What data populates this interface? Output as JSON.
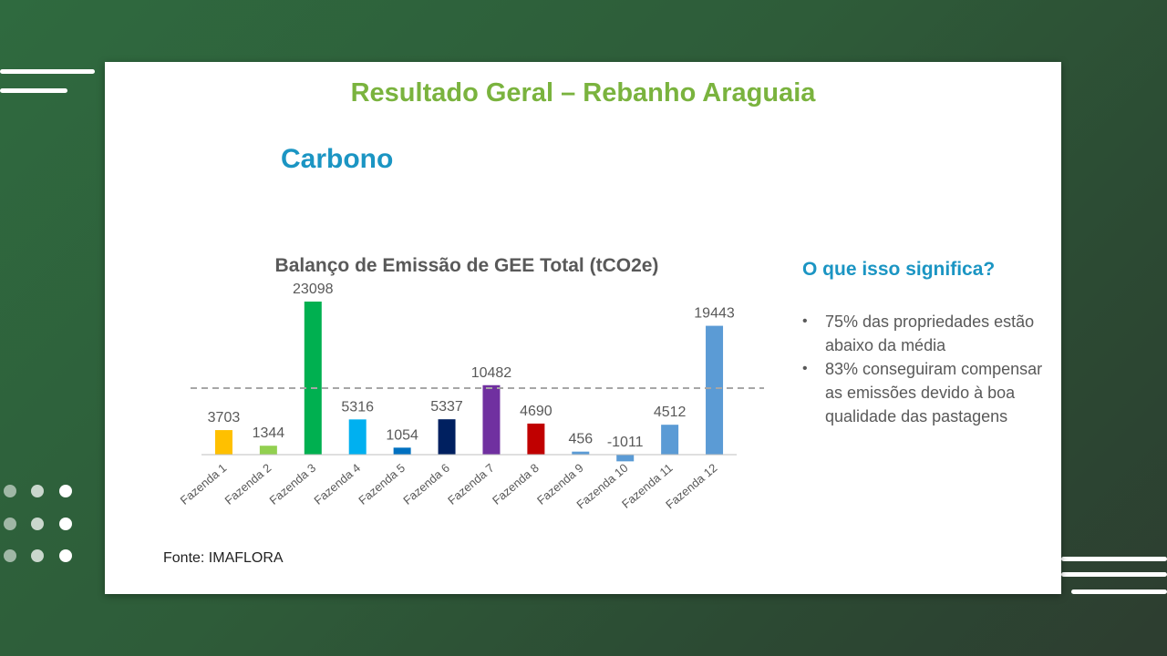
{
  "slide": {
    "title": "Resultado Geral – Rebanho Araguaia",
    "section": "Carbono",
    "source": "Fonte: IMAFLORA"
  },
  "side_panel": {
    "heading": "O que isso significa?",
    "bullets": [
      "75% das propriedades estão abaixo da média",
      "83% conseguiram compensar as emissões devido  à boa qualidade das pastagens"
    ]
  },
  "chart_data": {
    "type": "bar",
    "title": "Balanço de Emissão de GEE Total (tCO2e)",
    "categories": [
      "Fazenda 1",
      "Fazenda 2",
      "Fazenda 3",
      "Fazenda 4",
      "Fazenda 5",
      "Fazenda 6",
      "Fazenda 7",
      "Fazenda 8",
      "Fazenda 9",
      "Fazenda 10",
      "Fazenda 11",
      "Fazenda 12"
    ],
    "values": [
      3703,
      1344,
      23098,
      5316,
      1054,
      5337,
      10482,
      4690,
      456,
      -1011,
      4512,
      19443
    ],
    "colors": [
      "#ffc000",
      "#92d050",
      "#00b050",
      "#00b0f0",
      "#0070c0",
      "#002060",
      "#7030a0",
      "#c00000",
      "#5b9bd5",
      "#5b9bd5",
      "#5b9bd5",
      "#5b9bd5"
    ],
    "average_line": 10040,
    "average_line_style": "dashed",
    "ylim": [
      -1500,
      25000
    ],
    "grid": false,
    "legend": false,
    "data_labels": true
  }
}
